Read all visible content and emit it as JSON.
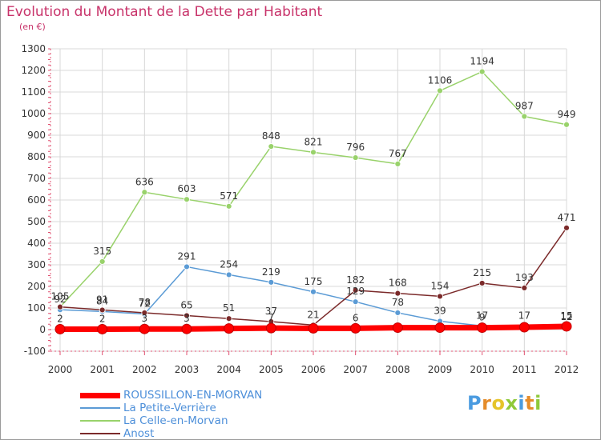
{
  "header": {
    "title": "Evolution du Montant de la Dette par Habitant",
    "unit": "(en €)"
  },
  "logo": {
    "letters": [
      "P",
      "r",
      "o",
      "x",
      "i",
      "t",
      "i"
    ],
    "colors": [
      "#4a9be0",
      "#e58c2a",
      "#e5c42a",
      "#8fc93a",
      "#4a9be0",
      "#e58c2a",
      "#8fc93a"
    ]
  },
  "chart_data": {
    "type": "line",
    "x": [
      2000,
      2001,
      2002,
      2003,
      2004,
      2005,
      2006,
      2007,
      2008,
      2009,
      2010,
      2011,
      2012
    ],
    "ylim": [
      -100,
      1300
    ],
    "yticks": [
      -100,
      0,
      100,
      200,
      300,
      400,
      500,
      600,
      700,
      800,
      900,
      1000,
      1100,
      1200,
      1300
    ],
    "grid": true,
    "legend_position": "bottom-left",
    "series": [
      {
        "name": "ROUSSILLON-EN-MORVAN",
        "color": "#ff0000",
        "values": [
          2,
          2,
          3,
          3,
          5,
          7,
          6,
          6,
          9,
          9,
          9,
          11,
          15
        ],
        "labels": [
          "2",
          "2",
          "3",
          "3",
          "",
          "7",
          "",
          "6",
          "",
          "",
          "9",
          "",
          "15"
        ]
      },
      {
        "name": "La Petite-Verrière",
        "color": "#5b9bd5",
        "values": [
          92,
          84,
          72,
          291,
          254,
          219,
          175,
          129,
          78,
          39,
          17,
          17,
          12
        ],
        "labels": [
          "92",
          "84",
          "72",
          "291",
          "254",
          "219",
          "175",
          "129",
          "78",
          "39",
          "17",
          "17",
          "12"
        ]
      },
      {
        "name": "La Celle-en-Morvan",
        "color": "#99d26b",
        "values": [
          105,
          315,
          636,
          603,
          571,
          848,
          821,
          796,
          767,
          1106,
          1194,
          987,
          949
        ],
        "labels": [
          "",
          "315",
          "636",
          "603",
          "571",
          "848",
          "821",
          "796",
          "767",
          "1106",
          "1194",
          "987",
          "949"
        ]
      },
      {
        "name": "Anost",
        "color": "#7b2a2a",
        "values": [
          105,
          91,
          78,
          65,
          51,
          37,
          21,
          182,
          168,
          154,
          215,
          193,
          471
        ],
        "labels": [
          "105",
          "91",
          "78",
          "65",
          "51",
          "37",
          "21",
          "182",
          "168",
          "154",
          "215",
          "193",
          "471"
        ]
      }
    ]
  }
}
